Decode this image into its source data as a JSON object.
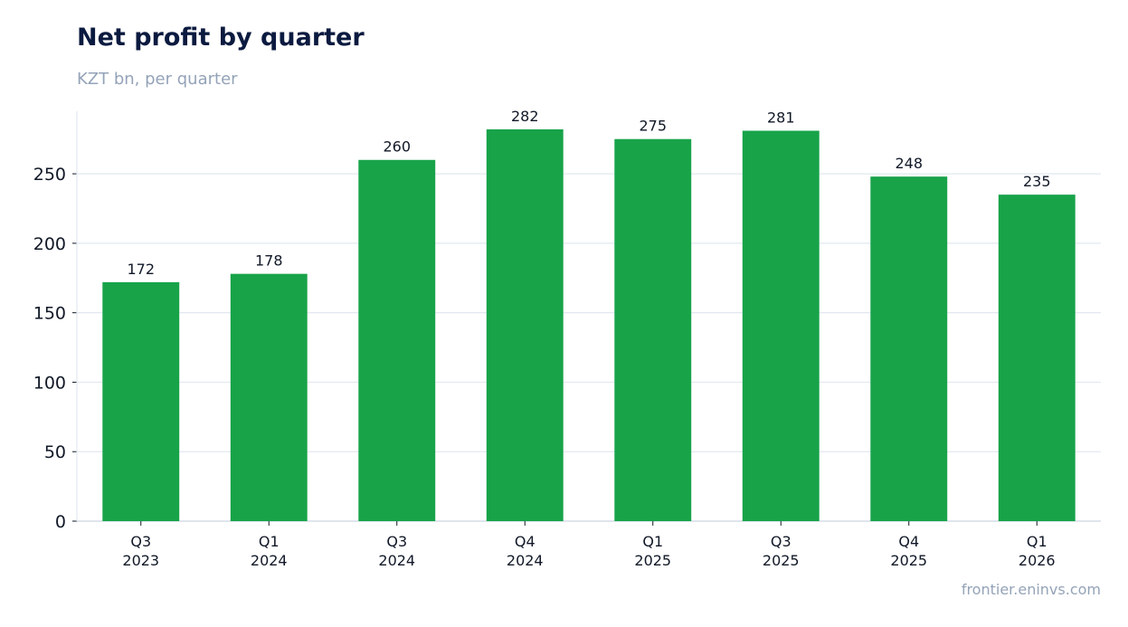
{
  "chart_data": {
    "type": "bar",
    "title": "Net profit by quarter",
    "subtitle": "KZT bn, per quarter",
    "categories": [
      [
        "Q3",
        "2023"
      ],
      [
        "Q1",
        "2024"
      ],
      [
        "Q3",
        "2024"
      ],
      [
        "Q4",
        "2024"
      ],
      [
        "Q1",
        "2025"
      ],
      [
        "Q3",
        "2025"
      ],
      [
        "Q4",
        "2025"
      ],
      [
        "Q1",
        "2026"
      ]
    ],
    "values": [
      172,
      178,
      260,
      282,
      275,
      281,
      248,
      235
    ],
    "data_labels": [
      "172",
      "178",
      "260",
      "282",
      "275",
      "281",
      "248",
      "235"
    ],
    "ylim": [
      0,
      295
    ],
    "yticks": [
      0,
      50,
      100,
      150,
      200,
      250
    ],
    "grid": "horizontal",
    "legend": "none",
    "bar_color": "#18a349",
    "grid_color": "#e2e8f0"
  },
  "footer": "frontier.eninvs.com"
}
